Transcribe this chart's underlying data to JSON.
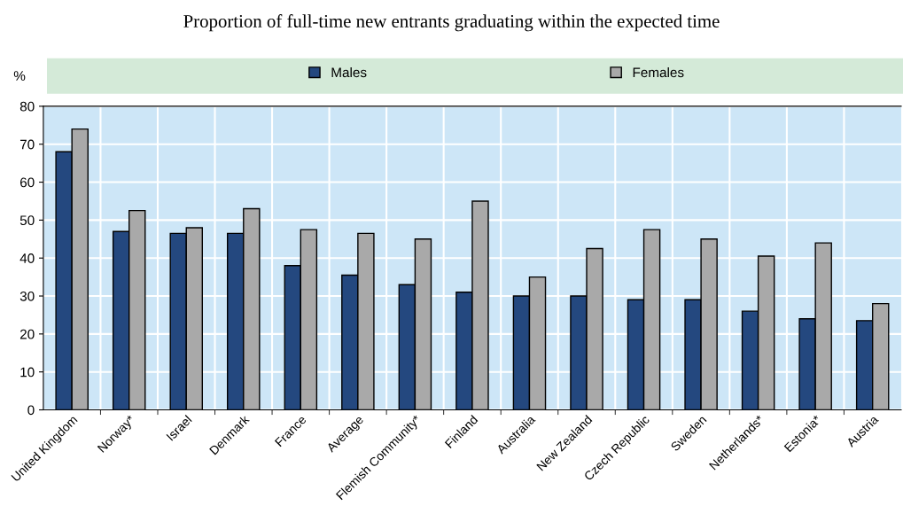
{
  "chart_data": {
    "type": "bar",
    "title": "Proportion of full-time new entrants graduating within the expected time",
    "ylabel": "%",
    "categories": [
      "United Kingdom",
      "Norway*",
      "Israel",
      "Denmark",
      "France",
      "Average",
      "Flemish Community*",
      "Finland",
      "Australia",
      "New Zealand",
      "Czech Republic",
      "Sweden",
      "Netherlands*",
      "Estonia*",
      "Austria"
    ],
    "series": [
      {
        "name": "Males",
        "color": "#24487f",
        "values": [
          68,
          47,
          46.5,
          46.5,
          38,
          35.5,
          33,
          31,
          30,
          30,
          29,
          29,
          26,
          24,
          23.5
        ]
      },
      {
        "name": "Females",
        "color": "#a9a9a9",
        "values": [
          74,
          52.5,
          48,
          53,
          47.5,
          46.5,
          45,
          55,
          35,
          42.5,
          47.5,
          45,
          40.5,
          44,
          28
        ]
      }
    ],
    "ylim": [
      0,
      80
    ],
    "yticks": [
      0,
      10,
      20,
      30,
      40,
      50,
      60,
      70,
      80
    ],
    "grid": true,
    "legend": "top"
  }
}
